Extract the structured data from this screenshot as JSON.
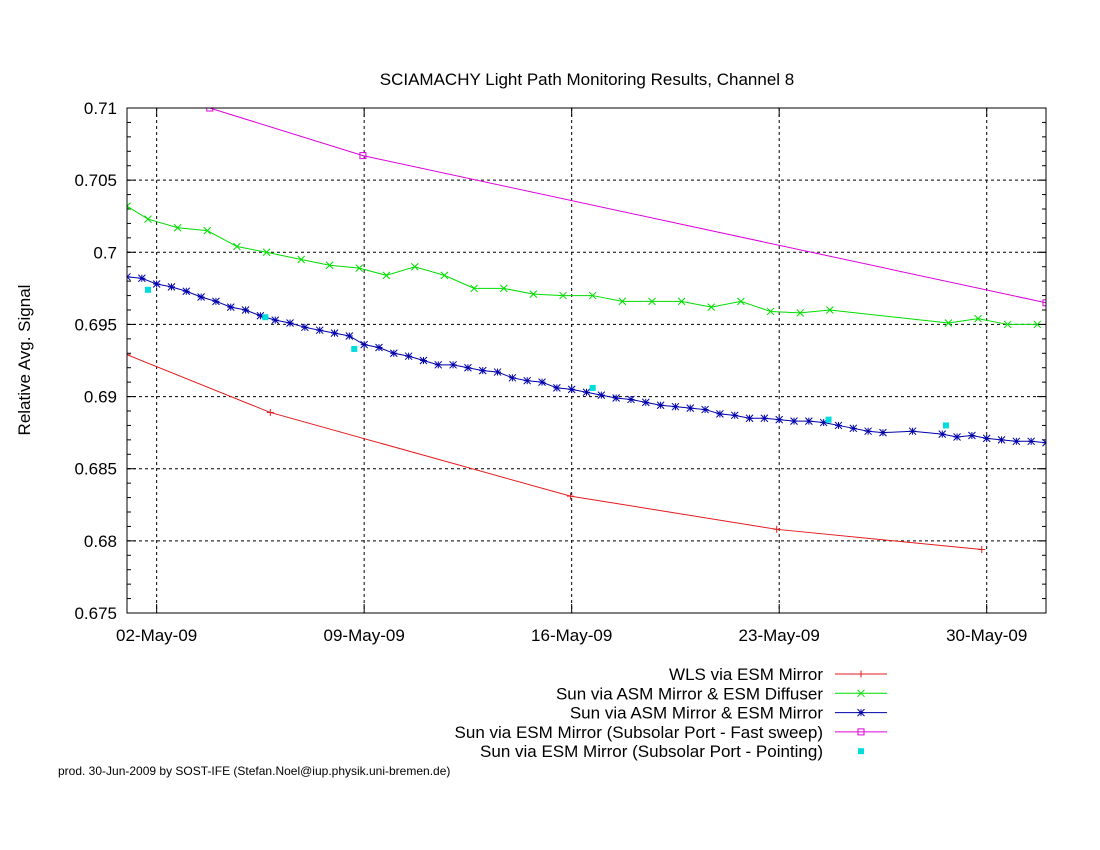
{
  "footer": "prod. 30-Jun-2009 by SOST-IFE (Stefan.Noel@iup.physik.uni-bremen.de)",
  "chart_data": {
    "type": "line",
    "title": "SCIAMACHY Light Path Monitoring Results, Channel 8",
    "ylabel": "Relative Avg. Signal",
    "xlabel": "",
    "x_axis_unit": "date",
    "xlim": [
      "2009-05-01T00:00",
      "2009-06-01T00:00"
    ],
    "ylim": [
      0.675,
      0.71
    ],
    "y_ticks": [
      0.675,
      0.68,
      0.685,
      0.69,
      0.695,
      0.7,
      0.705,
      0.71
    ],
    "y_tick_labels": [
      "0.675",
      "0.68",
      "0.685",
      "0.69",
      "0.695",
      "0.7",
      "0.705",
      "0.71"
    ],
    "x_ticks": [
      "2009-05-02T00:00",
      "2009-05-09T00:00",
      "2009-05-16T00:00",
      "2009-05-23T00:00",
      "2009-05-30T00:00"
    ],
    "x_tick_labels": [
      "02-May-09",
      "09-May-09",
      "16-May-09",
      "23-May-09",
      "30-May-09"
    ],
    "grid": true,
    "legend_position": "bottom-right, below plot",
    "series": [
      {
        "name": "WLS via ESM Mirror",
        "color": "#e41a1c",
        "marker": "plus",
        "line": true,
        "points": [
          [
            "2009-05-01T00:00",
            0.6929
          ],
          [
            "2009-05-05T20:00",
            0.6889
          ],
          [
            "2009-05-15T23:00",
            0.6831
          ],
          [
            "2009-05-22T22:00",
            0.6808
          ],
          [
            "2009-05-29T20:00",
            0.6794
          ]
        ]
      },
      {
        "name": "Sun via ASM Mirror & ESM Diffuser",
        "color": "#00dd00",
        "marker": "cross",
        "line": true,
        "points": [
          [
            "2009-05-01T00:00",
            0.7032
          ],
          [
            "2009-05-01T17:00",
            0.7023
          ],
          [
            "2009-05-02T17:00",
            0.7017
          ],
          [
            "2009-05-03T17:00",
            0.7015
          ],
          [
            "2009-05-04T17:00",
            0.7004
          ],
          [
            "2009-05-05T17:00",
            0.7
          ],
          [
            "2009-05-06T21:00",
            0.6995
          ],
          [
            "2009-05-07T20:00",
            0.6991
          ],
          [
            "2009-05-08T20:00",
            0.6989
          ],
          [
            "2009-05-09T18:00",
            0.6984
          ],
          [
            "2009-05-10T17:00",
            0.699
          ],
          [
            "2009-05-11T17:00",
            0.6984
          ],
          [
            "2009-05-12T17:00",
            0.6975
          ],
          [
            "2009-05-13T17:00",
            0.6975
          ],
          [
            "2009-05-14T17:00",
            0.6971
          ],
          [
            "2009-05-15T17:00",
            0.697
          ],
          [
            "2009-05-16T17:00",
            0.697
          ],
          [
            "2009-05-17T17:00",
            0.6966
          ],
          [
            "2009-05-18T17:00",
            0.6966
          ],
          [
            "2009-05-19T17:00",
            0.6966
          ],
          [
            "2009-05-20T17:00",
            0.6962
          ],
          [
            "2009-05-21T17:00",
            0.6966
          ],
          [
            "2009-05-22T17:00",
            0.6959
          ],
          [
            "2009-05-23T17:00",
            0.6958
          ],
          [
            "2009-05-24T17:00",
            0.696
          ],
          [
            "2009-05-28T17:00",
            0.6951
          ],
          [
            "2009-05-29T17:00",
            0.6954
          ],
          [
            "2009-05-30T17:00",
            0.695
          ],
          [
            "2009-05-31T17:00",
            0.695
          ]
        ]
      },
      {
        "name": "Sun via ASM Mirror & ESM Mirror",
        "color": "#0000aa",
        "marker": "star",
        "line": true,
        "points": [
          [
            "2009-05-01T00:00",
            0.6983
          ],
          [
            "2009-05-01T12:00",
            0.6982
          ],
          [
            "2009-05-02T00:00",
            0.6978
          ],
          [
            "2009-05-02T12:00",
            0.6976
          ],
          [
            "2009-05-03T00:00",
            0.6973
          ],
          [
            "2009-05-03T12:00",
            0.6969
          ],
          [
            "2009-05-04T00:00",
            0.6966
          ],
          [
            "2009-05-04T12:00",
            0.6962
          ],
          [
            "2009-05-05T00:00",
            0.696
          ],
          [
            "2009-05-05T12:00",
            0.6956
          ],
          [
            "2009-05-06T00:00",
            0.6953
          ],
          [
            "2009-05-06T12:00",
            0.6951
          ],
          [
            "2009-05-07T00:00",
            0.6948
          ],
          [
            "2009-05-07T12:00",
            0.6946
          ],
          [
            "2009-05-08T00:00",
            0.6944
          ],
          [
            "2009-05-08T12:00",
            0.6942
          ],
          [
            "2009-05-09T00:00",
            0.6936
          ],
          [
            "2009-05-09T12:00",
            0.6934
          ],
          [
            "2009-05-10T00:00",
            0.693
          ],
          [
            "2009-05-10T12:00",
            0.6928
          ],
          [
            "2009-05-11T00:00",
            0.6925
          ],
          [
            "2009-05-11T12:00",
            0.6922
          ],
          [
            "2009-05-12T00:00",
            0.6922
          ],
          [
            "2009-05-12T12:00",
            0.692
          ],
          [
            "2009-05-13T00:00",
            0.6918
          ],
          [
            "2009-05-13T12:00",
            0.6917
          ],
          [
            "2009-05-14T00:00",
            0.6913
          ],
          [
            "2009-05-14T12:00",
            0.6911
          ],
          [
            "2009-05-15T00:00",
            0.691
          ],
          [
            "2009-05-15T12:00",
            0.6906
          ],
          [
            "2009-05-16T00:00",
            0.6905
          ],
          [
            "2009-05-16T12:00",
            0.6903
          ],
          [
            "2009-05-17T00:00",
            0.6901
          ],
          [
            "2009-05-17T12:00",
            0.6899
          ],
          [
            "2009-05-18T00:00",
            0.6898
          ],
          [
            "2009-05-18T12:00",
            0.6896
          ],
          [
            "2009-05-19T00:00",
            0.6894
          ],
          [
            "2009-05-19T12:00",
            0.6893
          ],
          [
            "2009-05-20T00:00",
            0.6892
          ],
          [
            "2009-05-20T12:00",
            0.6891
          ],
          [
            "2009-05-21T00:00",
            0.6888
          ],
          [
            "2009-05-21T12:00",
            0.6887
          ],
          [
            "2009-05-22T00:00",
            0.6885
          ],
          [
            "2009-05-22T12:00",
            0.6885
          ],
          [
            "2009-05-23T00:00",
            0.6884
          ],
          [
            "2009-05-23T12:00",
            0.6883
          ],
          [
            "2009-05-24T00:00",
            0.6883
          ],
          [
            "2009-05-24T12:00",
            0.6882
          ],
          [
            "2009-05-25T00:00",
            0.688
          ],
          [
            "2009-05-25T12:00",
            0.6878
          ],
          [
            "2009-05-26T00:00",
            0.6876
          ],
          [
            "2009-05-26T12:00",
            0.6875
          ],
          [
            "2009-05-27T12:00",
            0.6876
          ],
          [
            "2009-05-28T12:00",
            0.6874
          ],
          [
            "2009-05-29T00:00",
            0.6872
          ],
          [
            "2009-05-29T12:00",
            0.6873
          ],
          [
            "2009-05-30T00:00",
            0.6871
          ],
          [
            "2009-05-30T12:00",
            0.687
          ],
          [
            "2009-05-31T00:00",
            0.6869
          ],
          [
            "2009-05-31T12:00",
            0.6869
          ],
          [
            "2009-06-01T00:00",
            0.6868
          ]
        ]
      },
      {
        "name": "Sun via ESM Mirror (Subsolar Port - Fast sweep)",
        "color": "#dd00dd",
        "marker": "square",
        "line": true,
        "points": [
          [
            "2009-05-03T19:00",
            0.71
          ],
          [
            "2009-05-08T23:00",
            0.7067
          ],
          [
            "2009-06-01T00:00",
            0.6965
          ]
        ]
      },
      {
        "name": "Sun via ESM Mirror (Subsolar Port - Pointing)",
        "color": "#00dddd",
        "marker": "filled-square",
        "line": false,
        "points": [
          [
            "2009-05-01T17:00",
            0.6974
          ],
          [
            "2009-05-05T16:00",
            0.6955
          ],
          [
            "2009-05-08T16:00",
            0.6933
          ],
          [
            "2009-05-16T17:00",
            0.6906
          ],
          [
            "2009-05-24T16:00",
            0.6884
          ],
          [
            "2009-05-28T15:00",
            0.688
          ]
        ]
      }
    ]
  }
}
